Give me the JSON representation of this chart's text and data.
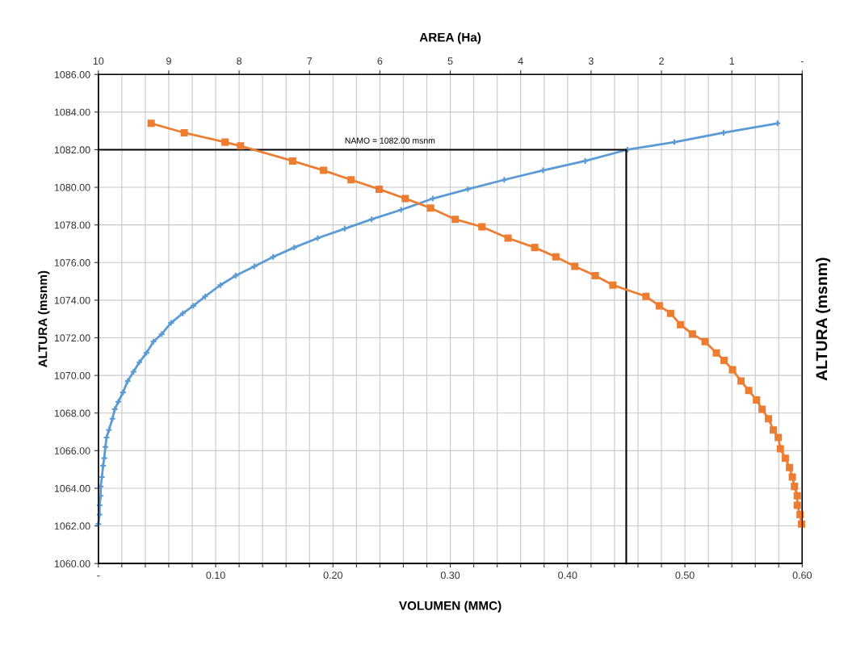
{
  "chart_data": {
    "type": "line",
    "xlabel": "VOLUMEN (MMC)",
    "x2label": "AREA (Ha)",
    "ylabel": "ALTURA (msnm)",
    "y2label": "ALTURA (msnm)",
    "xlim": [
      0,
      0.6
    ],
    "xticks": [
      {
        "value": 0,
        "label": "-"
      },
      {
        "value": 0.02,
        "label": null
      },
      {
        "value": 0.04,
        "label": null
      },
      {
        "value": 0.06,
        "label": null
      },
      {
        "value": 0.08,
        "label": null
      },
      {
        "value": 0.1,
        "label": "0.10"
      },
      {
        "value": 0.12,
        "label": null
      },
      {
        "value": 0.14,
        "label": null
      },
      {
        "value": 0.16,
        "label": null
      },
      {
        "value": 0.18,
        "label": null
      },
      {
        "value": 0.2,
        "label": "0.20"
      },
      {
        "value": 0.22,
        "label": null
      },
      {
        "value": 0.24,
        "label": null
      },
      {
        "value": 0.26,
        "label": null
      },
      {
        "value": 0.28,
        "label": null
      },
      {
        "value": 0.3,
        "label": "0.30"
      },
      {
        "value": 0.32,
        "label": null
      },
      {
        "value": 0.34,
        "label": null
      },
      {
        "value": 0.36,
        "label": null
      },
      {
        "value": 0.38,
        "label": null
      },
      {
        "value": 0.4,
        "label": "0.40"
      },
      {
        "value": 0.42,
        "label": null
      },
      {
        "value": 0.44,
        "label": null
      },
      {
        "value": 0.46,
        "label": null
      },
      {
        "value": 0.48,
        "label": null
      },
      {
        "value": 0.5,
        "label": "0.50"
      },
      {
        "value": 0.52,
        "label": null
      },
      {
        "value": 0.54,
        "label": null
      },
      {
        "value": 0.56,
        "label": null
      },
      {
        "value": 0.58,
        "label": null
      },
      {
        "value": 0.6,
        "label": "0.60"
      }
    ],
    "x2lim": [
      10,
      0
    ],
    "x2ticks": [
      10,
      9,
      8,
      7,
      6,
      5,
      4,
      3,
      2,
      1,
      {
        "value": 0,
        "label": "-"
      }
    ],
    "ylim": [
      1060,
      1086
    ],
    "yticks": [
      {
        "value": 1060,
        "label": "1060.00"
      },
      {
        "value": 1062,
        "label": "1062.00"
      },
      {
        "value": 1064,
        "label": "1064.00"
      },
      {
        "value": 1066,
        "label": "1066.00"
      },
      {
        "value": 1068,
        "label": "1068.00"
      },
      {
        "value": 1070,
        "label": "1070.00"
      },
      {
        "value": 1072,
        "label": "1072.00"
      },
      {
        "value": 1074,
        "label": "1074.00"
      },
      {
        "value": 1076,
        "label": "1076.00"
      },
      {
        "value": 1078,
        "label": "1078.00"
      },
      {
        "value": 1080,
        "label": "1080.00"
      },
      {
        "value": 1082,
        "label": "1082.00"
      },
      {
        "value": 1084,
        "label": "1084.00"
      },
      {
        "value": 1086,
        "label": "1086.00"
      }
    ],
    "grid": true,
    "annotations": [
      {
        "text": "NAMO = 1082.00 msnm",
        "x": 0.21,
        "y": 1082
      }
    ],
    "series": [
      {
        "color": "#5b9bd5",
        "marker": "cross",
        "x": [
          0.579,
          0.533,
          0.491,
          0.451,
          0.415,
          0.379,
          0.346,
          0.315,
          0.285,
          0.258,
          0.233,
          0.21,
          0.187,
          0.167,
          0.149,
          0.133,
          0.117,
          0.104,
          0.091,
          0.081,
          0.072,
          0.062,
          0.054,
          0.047,
          0.041,
          0.035,
          0.03,
          0.025,
          0.021,
          0.017,
          0.014,
          0.012,
          0.009,
          0.007,
          0.006,
          0.005,
          0.004,
          0.003,
          0.002,
          0.002,
          0.001,
          0.001,
          0.0
        ],
        "values": [
          1083.4,
          1082.9,
          1082.4,
          1082.0,
          1081.4,
          1080.9,
          1080.4,
          1079.9,
          1079.4,
          1078.8,
          1078.3,
          1077.8,
          1077.3,
          1076.8,
          1076.3,
          1075.8,
          1075.3,
          1074.8,
          1074.2,
          1073.7,
          1073.3,
          1072.8,
          1072.2,
          1071.8,
          1071.2,
          1070.7,
          1070.2,
          1069.7,
          1069.1,
          1068.6,
          1068.2,
          1067.7,
          1067.1,
          1066.7,
          1066.2,
          1065.6,
          1065.2,
          1064.6,
          1064.1,
          1063.6,
          1063.1,
          1062.6,
          1062.1
        ]
      },
      {
        "color": "#ed7d31",
        "marker": "square",
        "axis": "x2",
        "x": [
          9.25,
          8.78,
          8.2,
          7.98,
          7.24,
          6.8,
          6.41,
          6.01,
          5.64,
          5.28,
          4.93,
          4.55,
          4.18,
          3.8,
          3.5,
          3.23,
          2.94,
          2.69,
          2.22,
          2.03,
          1.87,
          1.73,
          1.56,
          1.38,
          1.22,
          1.11,
          0.99,
          0.87,
          0.76,
          0.65,
          0.57,
          0.48,
          0.41,
          0.34,
          0.31,
          0.24,
          0.18,
          0.14,
          0.11,
          0.07,
          0.07,
          0.03,
          0.01
        ],
        "values": [
          1083.4,
          1082.9,
          1082.4,
          1082.2,
          1081.4,
          1080.9,
          1080.4,
          1079.9,
          1079.4,
          1078.9,
          1078.3,
          1077.9,
          1077.3,
          1076.8,
          1076.3,
          1075.8,
          1075.3,
          1074.8,
          1074.2,
          1073.7,
          1073.3,
          1072.7,
          1072.2,
          1071.8,
          1071.2,
          1070.8,
          1070.3,
          1069.7,
          1069.2,
          1068.7,
          1068.2,
          1067.7,
          1067.1,
          1066.7,
          1066.1,
          1065.6,
          1065.1,
          1064.6,
          1064.1,
          1063.6,
          1063.1,
          1062.6,
          1062.1
        ]
      },
      {
        "color": "#000000",
        "marker": "none",
        "x": [
          0,
          0.45,
          0.45
        ],
        "values": [
          1082,
          1082,
          1060
        ]
      }
    ]
  }
}
